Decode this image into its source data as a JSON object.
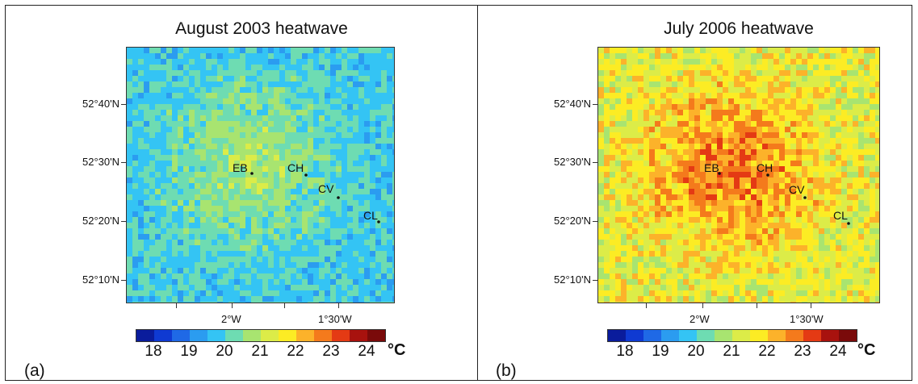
{
  "panels": [
    {
      "title": "August 2003 heatwave",
      "label": "(a)",
      "base_color": "#34c4f4",
      "lat_labels": [
        "52°40'N",
        "52°30'N",
        "52°20'N",
        "52°10'N"
      ],
      "lon_labels": [
        "2°W",
        "1°30'W"
      ],
      "sites": [
        "EB",
        "CH",
        "CV",
        "CL"
      ]
    },
    {
      "title": "July 2006 heatwave",
      "label": "(b)",
      "base_color": "#f4e42c",
      "lat_labels": [
        "52°40'N",
        "52°30'N",
        "52°20'N",
        "52°10'N"
      ],
      "lon_labels": [
        "2°W",
        "1°30'W"
      ],
      "sites": [
        "EB",
        "CH",
        "CV",
        "CL"
      ]
    }
  ],
  "colorbar": {
    "colors": [
      "#0a1c9c",
      "#0f3ad2",
      "#1f69e6",
      "#2b9cf0",
      "#34c4f4",
      "#6edcb2",
      "#a8e470",
      "#dcec48",
      "#fcec24",
      "#fcb22a",
      "#f47a1c",
      "#e43a14",
      "#a8120e",
      "#7a0a0a"
    ],
    "tick_labels": [
      "18",
      "19",
      "20",
      "21",
      "22",
      "23",
      "24"
    ],
    "unit": "°C"
  }
}
